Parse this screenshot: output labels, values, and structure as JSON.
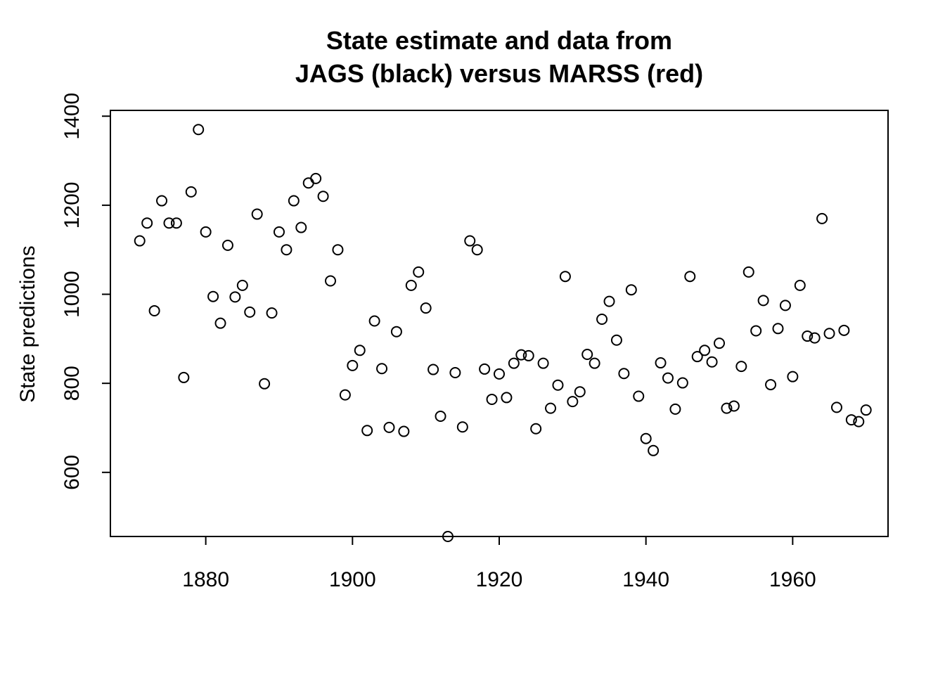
{
  "chart_data": {
    "type": "scatter",
    "title_line1": "State estimate and data from",
    "title_line2": "JAGS (black) versus MARSS (red)",
    "xlabel": "",
    "ylabel": "State predictions",
    "xlim": [
      1867,
      1973
    ],
    "ylim": [
      456,
      1413
    ],
    "x_ticks": [
      1880,
      1900,
      1920,
      1940,
      1960
    ],
    "y_ticks": [
      600,
      800,
      1000,
      1200,
      1400
    ],
    "point_color": "#000000",
    "series": [
      {
        "x": [
          1871,
          1872,
          1873,
          1874,
          1875,
          1876,
          1877,
          1878,
          1879,
          1880,
          1881,
          1882,
          1883,
          1884,
          1885,
          1886,
          1887,
          1888,
          1889,
          1890,
          1891,
          1892,
          1893,
          1894,
          1895,
          1896,
          1897,
          1898,
          1899,
          1900,
          1901,
          1902,
          1903,
          1904,
          1905,
          1906,
          1907,
          1908,
          1909,
          1910,
          1911,
          1912,
          1913,
          1914,
          1915,
          1916,
          1917,
          1918,
          1919,
          1920,
          1921,
          1922,
          1923,
          1924,
          1925,
          1926,
          1927,
          1928,
          1929,
          1930,
          1931,
          1932,
          1933,
          1934,
          1935,
          1936,
          1937,
          1938,
          1939,
          1940,
          1941,
          1942,
          1943,
          1944,
          1945,
          1946,
          1947,
          1948,
          1949,
          1950,
          1951,
          1952,
          1953,
          1954,
          1955,
          1956,
          1957,
          1958,
          1959,
          1960,
          1961,
          1962,
          1963,
          1964,
          1965,
          1966,
          1967,
          1968,
          1969,
          1970
        ],
        "y": [
          1120,
          1160,
          963,
          1210,
          1160,
          1160,
          813,
          1230,
          1370,
          1140,
          995,
          935,
          1110,
          994,
          1020,
          960,
          1180,
          799,
          958,
          1140,
          1100,
          1210,
          1150,
          1250,
          1260,
          1220,
          1030,
          1100,
          774,
          840,
          874,
          694,
          940,
          833,
          701,
          916,
          692,
          1020,
          1050,
          969,
          831,
          726,
          456,
          824,
          702,
          1120,
          1100,
          832,
          764,
          821,
          768,
          845,
          864,
          862,
          698,
          845,
          744,
          796,
          1040,
          759,
          781,
          865,
          845,
          944,
          984,
          897,
          822,
          1010,
          771,
          676,
          649,
          846,
          812,
          742,
          801,
          1040,
          860,
          874,
          848,
          890,
          744,
          749,
          838,
          1050,
          918,
          986,
          797,
          923,
          975,
          815,
          1020,
          906,
          902,
          1170,
          912,
          746,
          919,
          718,
          714,
          740
        ]
      }
    ]
  }
}
